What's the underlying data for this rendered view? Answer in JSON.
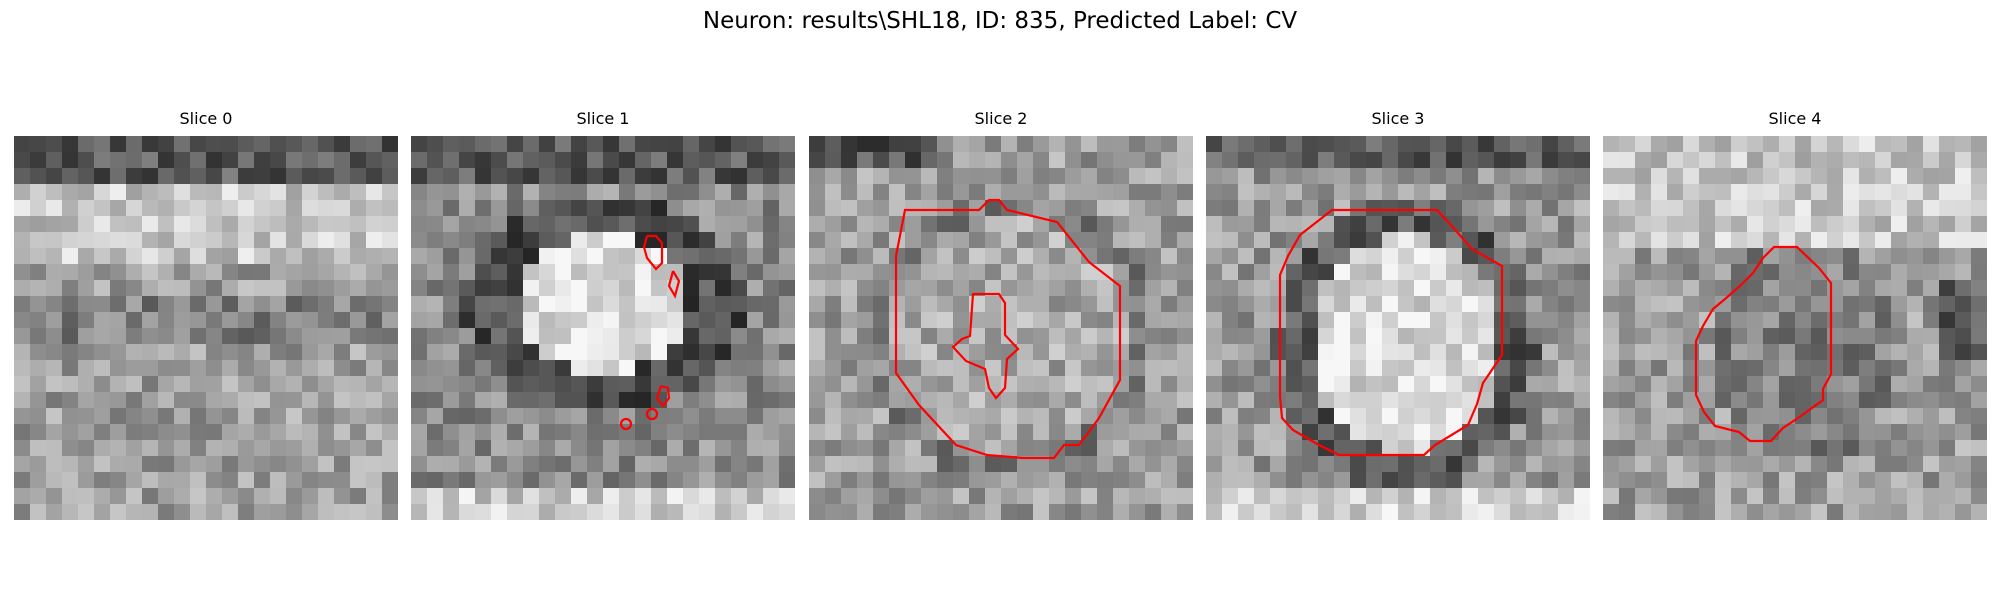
{
  "figure": {
    "title": "Neuron: results\\SHL18, ID: 835, Predicted Label: CV"
  },
  "panels": [
    {
      "label": "Slice 0"
    },
    {
      "label": "Slice 1"
    },
    {
      "label": "Slice 2"
    },
    {
      "label": "Slice 3"
    },
    {
      "label": "Slice 4"
    }
  ],
  "colors": {
    "contour": "#ff0000"
  }
}
